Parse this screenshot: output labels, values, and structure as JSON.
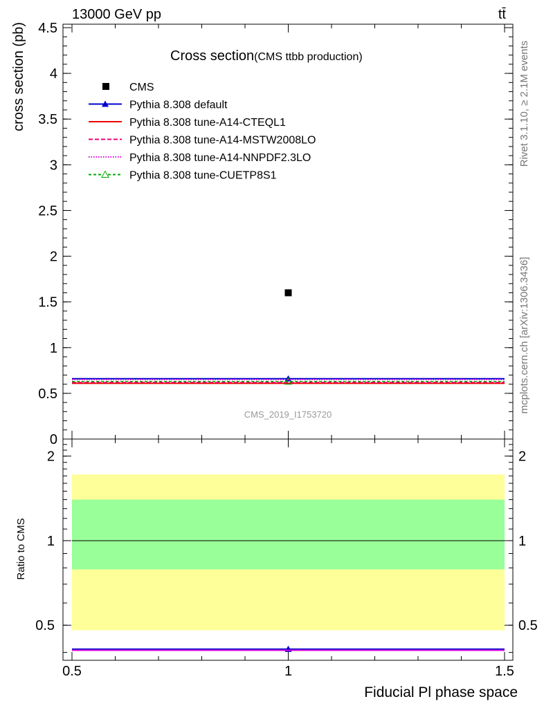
{
  "header": {
    "energy_label": "13000 GeV pp",
    "process_label": "tt̄",
    "rivet_label": "Rivet 3.1.10, ≥ 2.1M events",
    "source_label": "mcplots.cern.ch [arXiv:1306.3436]",
    "analysis_label": "CMS_2019_I1753720"
  },
  "chart_data": [
    {
      "panel": "main",
      "type": "scatter",
      "title": "Cross section",
      "subtitle": "(CMS ttbb production)",
      "xlabel": "",
      "ylabel": "cross section (pb)",
      "xlim": [
        0.5,
        1.5
      ],
      "ylim": [
        0,
        4.5
      ],
      "yticks": [
        {
          "v": 0,
          "label": "0"
        },
        {
          "v": 0.5,
          "label": "0.5"
        },
        {
          "v": 1,
          "label": "1"
        },
        {
          "v": 1.5,
          "label": "1.5"
        },
        {
          "v": 2,
          "label": "2"
        },
        {
          "v": 2.5,
          "label": "2.5"
        },
        {
          "v": 3,
          "label": "3"
        },
        {
          "v": 3.5,
          "label": "3.5"
        },
        {
          "v": 4,
          "label": "4"
        },
        {
          "v": 4.5,
          "label": "4.5"
        }
      ],
      "grid": false,
      "legend_position": "top-left",
      "data": {
        "name": "CMS",
        "x": 1.0,
        "y": 1.6,
        "color": "#000000"
      },
      "series": [
        {
          "name": "Pythia 8.308 default",
          "x": [
            0.5,
            1.5
          ],
          "y": [
            0.66,
            0.66
          ],
          "color": "#0000cc",
          "dash": "",
          "marker": "triangle"
        },
        {
          "name": "Pythia 8.308 tune-A14-CTEQL1",
          "x": [
            0.5,
            1.5
          ],
          "y": [
            0.61,
            0.61
          ],
          "color": "#ee0000",
          "dash": "",
          "marker": ""
        },
        {
          "name": "Pythia 8.308 tune-A14-MSTW2008LO",
          "x": [
            0.5,
            1.5
          ],
          "y": [
            0.62,
            0.62
          ],
          "color": "#ee0077",
          "dash": "6,3",
          "marker": ""
        },
        {
          "name": "Pythia 8.308 tune-A14-NNPDF2.3LO",
          "x": [
            0.5,
            1.5
          ],
          "y": [
            0.65,
            0.65
          ],
          "color": "#dd00dd",
          "dash": "1.5,2",
          "marker": ""
        },
        {
          "name": "Pythia 8.308 tune-CUETP8S1",
          "x": [
            0.5,
            1.5
          ],
          "y": [
            0.63,
            0.63
          ],
          "color": "#00aa00",
          "dash": "4,3",
          "marker": "triangle-open"
        }
      ]
    },
    {
      "panel": "ratio",
      "type": "line",
      "title": "",
      "xlabel": "Fiducial Pl phase space",
      "ylabel": "Ratio to CMS",
      "xlim": [
        0.5,
        1.5
      ],
      "ylim": [
        0.375,
        2.3
      ],
      "yticks": [
        {
          "v": 0.5,
          "label": "0.5"
        },
        {
          "v": 1,
          "label": "1"
        },
        {
          "v": 2,
          "label": "2"
        }
      ],
      "xticks": [
        {
          "v": 0.5,
          "label": "0.5"
        },
        {
          "v": 1,
          "label": "1"
        },
        {
          "v": 1.5,
          "label": "1.5"
        }
      ],
      "grid": false,
      "bands": [
        {
          "name": "yellow",
          "low": 0.48,
          "high": 1.72,
          "color": "#ffff99"
        },
        {
          "name": "green",
          "low": 0.79,
          "high": 1.4,
          "color": "#99ff99"
        }
      ],
      "reference_line": 1.0,
      "series": [
        {
          "name": "Pythia 8.308 default",
          "y": 0.411,
          "color": "#0000cc",
          "marker": "triangle"
        },
        {
          "name": "Pythia 8.308 tune-A14-NNPDF2.3LO",
          "y": 0.407,
          "color": "#dd00dd",
          "marker": ""
        }
      ]
    }
  ]
}
